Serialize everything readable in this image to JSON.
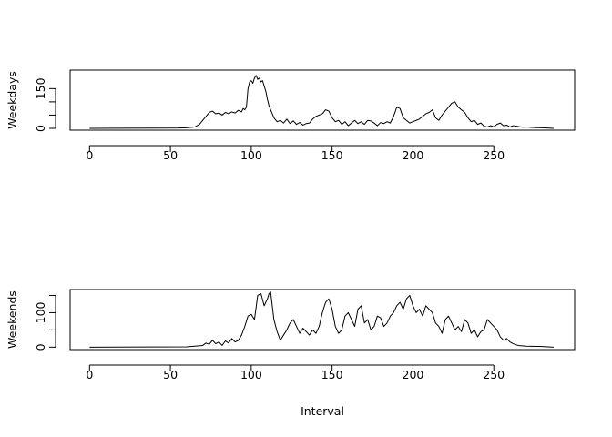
{
  "figure": {
    "xlabel": "Interval"
  },
  "chart_data": [
    {
      "type": "line",
      "title": "",
      "xlabel": "",
      "ylabel": "Weekdays",
      "xlim": [
        -12,
        300
      ],
      "ylim": [
        -7,
        220
      ],
      "xticks": [
        0,
        50,
        100,
        150,
        200,
        250
      ],
      "yticks": [
        0,
        50,
        100,
        150
      ],
      "ytick_labels": [
        "0",
        "",
        "",
        "150"
      ],
      "series": [
        {
          "color": "#000000",
          "x": [
            0,
            55,
            60,
            65,
            68,
            70,
            72,
            74,
            76,
            78,
            80,
            82,
            84,
            86,
            88,
            90,
            92,
            94,
            95,
            96,
            97,
            98,
            99,
            100,
            101,
            102,
            103,
            104,
            105,
            106,
            107,
            108,
            109,
            110,
            111,
            112,
            113,
            114,
            116,
            118,
            120,
            122,
            124,
            126,
            128,
            130,
            132,
            134,
            136,
            138,
            140,
            142,
            144,
            146,
            148,
            150,
            152,
            154,
            156,
            158,
            160,
            162,
            164,
            166,
            168,
            170,
            172,
            174,
            176,
            178,
            180,
            182,
            184,
            186,
            188,
            190,
            192,
            194,
            196,
            198,
            200,
            202,
            204,
            206,
            208,
            210,
            212,
            214,
            216,
            218,
            220,
            222,
            224,
            226,
            228,
            230,
            232,
            234,
            236,
            238,
            240,
            242,
            244,
            246,
            248,
            250,
            252,
            254,
            256,
            258,
            260,
            262,
            264,
            266,
            268,
            270,
            275,
            280,
            287
          ],
          "y": [
            0,
            1,
            2,
            5,
            15,
            30,
            45,
            60,
            65,
            55,
            58,
            50,
            60,
            55,
            62,
            58,
            68,
            62,
            75,
            70,
            80,
            150,
            175,
            180,
            170,
            190,
            200,
            185,
            190,
            175,
            180,
            160,
            140,
            110,
            85,
            70,
            55,
            40,
            25,
            30,
            20,
            35,
            18,
            28,
            15,
            22,
            12,
            18,
            20,
            35,
            45,
            50,
            55,
            70,
            65,
            40,
            25,
            30,
            15,
            25,
            10,
            20,
            30,
            18,
            25,
            15,
            30,
            28,
            20,
            10,
            22,
            18,
            25,
            20,
            45,
            80,
            75,
            40,
            30,
            20,
            25,
            30,
            35,
            45,
            55,
            60,
            70,
            40,
            30,
            50,
            65,
            80,
            95,
            100,
            80,
            70,
            60,
            40,
            25,
            30,
            15,
            20,
            8,
            5,
            10,
            6,
            15,
            20,
            10,
            12,
            5,
            10,
            8,
            6,
            4,
            5,
            3,
            2,
            0
          ]
        }
      ]
    },
    {
      "type": "line",
      "title": "",
      "xlabel": "",
      "ylabel": "Weekends",
      "xlim": [
        -12,
        300
      ],
      "ylim": [
        -7,
        167
      ],
      "xticks": [
        0,
        50,
        100,
        150,
        200,
        250
      ],
      "yticks": [
        0,
        50,
        100,
        150
      ],
      "ytick_labels": [
        "0",
        "",
        "100",
        ""
      ],
      "series": [
        {
          "color": "#000000",
          "x": [
            0,
            60,
            65,
            70,
            72,
            74,
            76,
            78,
            80,
            82,
            84,
            86,
            88,
            90,
            92,
            94,
            96,
            98,
            100,
            102,
            104,
            106,
            108,
            110,
            111,
            112,
            113,
            114,
            116,
            118,
            120,
            122,
            124,
            126,
            128,
            130,
            132,
            134,
            136,
            138,
            140,
            142,
            144,
            146,
            148,
            150,
            152,
            154,
            156,
            158,
            160,
            162,
            164,
            166,
            168,
            170,
            172,
            174,
            176,
            178,
            180,
            182,
            184,
            186,
            188,
            190,
            192,
            194,
            196,
            198,
            200,
            202,
            204,
            206,
            208,
            210,
            212,
            214,
            216,
            218,
            220,
            222,
            224,
            226,
            228,
            230,
            232,
            234,
            236,
            238,
            240,
            242,
            244,
            246,
            248,
            250,
            252,
            254,
            256,
            258,
            260,
            262,
            265,
            270,
            280,
            287
          ],
          "y": [
            0,
            1,
            3,
            5,
            12,
            8,
            20,
            10,
            15,
            5,
            18,
            12,
            25,
            15,
            20,
            35,
            60,
            90,
            95,
            80,
            150,
            155,
            120,
            140,
            155,
            160,
            120,
            80,
            45,
            20,
            35,
            50,
            70,
            80,
            60,
            40,
            55,
            45,
            35,
            50,
            40,
            60,
            100,
            130,
            140,
            110,
            60,
            40,
            50,
            90,
            100,
            80,
            60,
            110,
            120,
            70,
            80,
            50,
            60,
            90,
            85,
            60,
            70,
            90,
            100,
            120,
            130,
            110,
            140,
            150,
            120,
            100,
            110,
            90,
            120,
            110,
            100,
            70,
            60,
            40,
            80,
            90,
            70,
            50,
            60,
            45,
            80,
            70,
            40,
            50,
            30,
            45,
            50,
            80,
            70,
            60,
            50,
            30,
            20,
            25,
            15,
            10,
            5,
            3,
            2,
            0
          ]
        }
      ]
    }
  ]
}
